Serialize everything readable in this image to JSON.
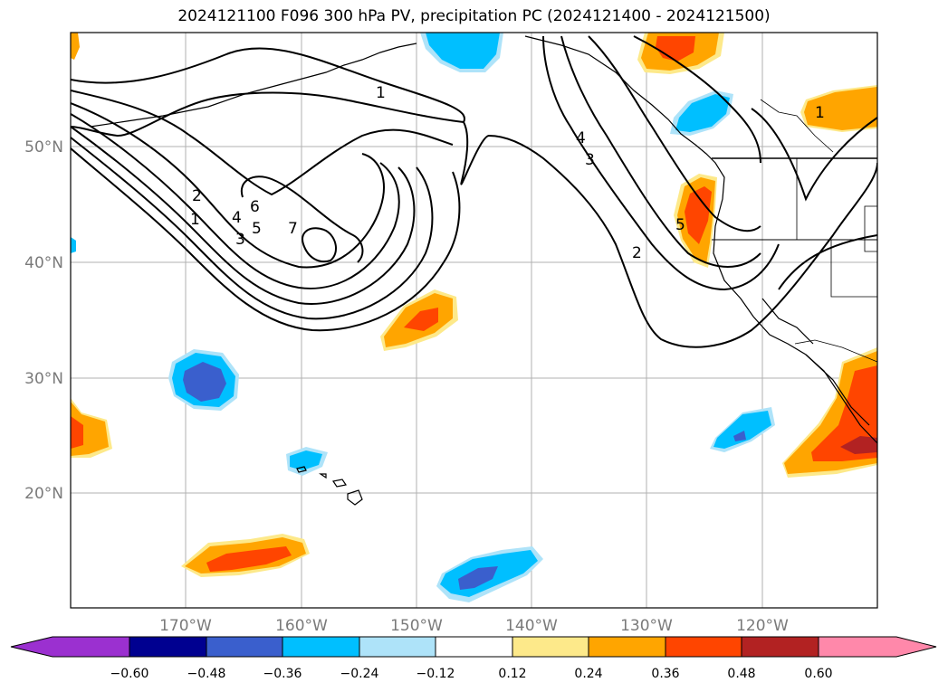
{
  "title": "2024121100 F096 300 hPa PV, precipitation PC (2024121400 - 2024121500)",
  "lon_labels": [
    "170°W",
    "160°W",
    "150°W",
    "140°W",
    "130°W",
    "120°W"
  ],
  "lat_labels": [
    "50°N",
    "40°N",
    "30°N",
    "20°N"
  ],
  "contour_labels": [
    "1",
    "2",
    "3",
    "4",
    "5",
    "6",
    "7",
    "1",
    "2",
    "3",
    "4",
    "5",
    "1"
  ],
  "colorbar": {
    "colors": [
      "#9b30d0",
      "#000090",
      "#3a5fcd",
      "#00bfff",
      "#aee3f9",
      "#ffffff",
      "#fde98a",
      "#ffa500",
      "#ff4500",
      "#b22222",
      "#ff88aa"
    ],
    "tick_labels": [
      "−0.60",
      "−0.48",
      "−0.36",
      "−0.24",
      "−0.12",
      "0.12",
      "0.24",
      "0.36",
      "0.48",
      "0.60"
    ]
  },
  "colors": {
    "orange": "#ffa500",
    "red_orange": "#ff4500",
    "dark_red": "#b22222",
    "yellow": "#fde98a",
    "light_blue": "#aee3f9",
    "cyan": "#00bfff",
    "mid_blue": "#3a5fcd"
  }
}
